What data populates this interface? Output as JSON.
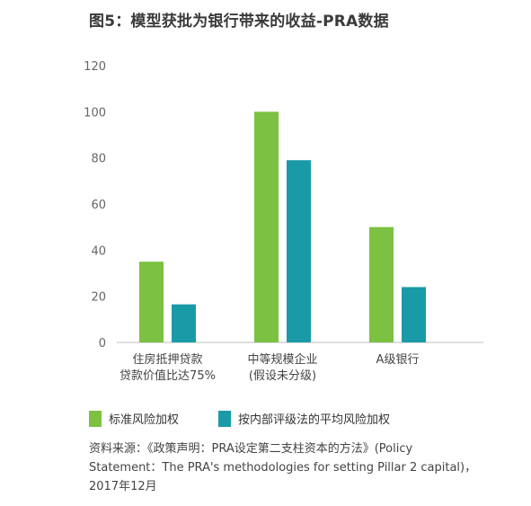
{
  "title": "图5：模型获批为银行带来的收益-PRA数据",
  "chart_data": {
    "type": "bar",
    "categories": [
      [
        "住房抵押贷款",
        "贷款价值比达75%"
      ],
      [
        "中等规模企业",
        "(假设未分级)"
      ],
      [
        "A级银行"
      ]
    ],
    "series": [
      {
        "name": "标准风险加权",
        "values": [
          35,
          100,
          50
        ],
        "color": "#7cc142"
      },
      {
        "name": "按内部评级法的平均风险加权",
        "values": [
          16.5,
          79,
          24
        ],
        "color": "#1a9aa7"
      }
    ],
    "yticks": [
      0,
      20,
      40,
      60,
      80,
      100,
      120
    ],
    "ylim": [
      0,
      120
    ],
    "grid": false,
    "legend": "bottom"
  },
  "source": {
    "line1": "资料来源：《政策声明：PRA设定第二支柱资本的方法》(Policy",
    "line2": "Statement：The PRA's methodologies for setting Pillar 2 capital)，",
    "line3": "2017年12月"
  }
}
